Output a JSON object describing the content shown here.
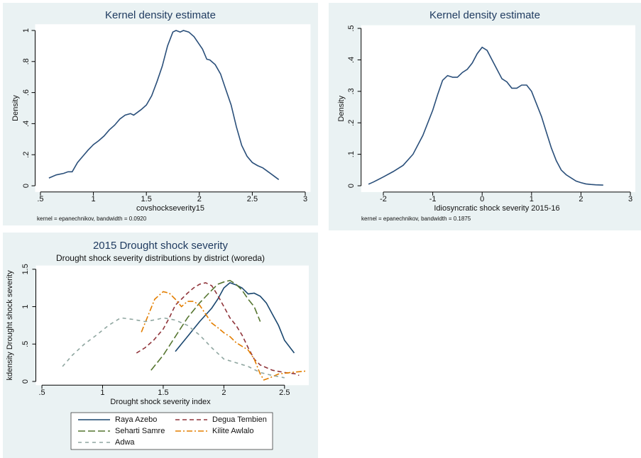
{
  "chart_data": [
    {
      "type": "line",
      "title": "Kernel density estimate",
      "y_label": "Density",
      "x_label": "covshockseverity15",
      "note": "kernel = epanechnikov, bandwidth = 0.0920",
      "color": "#2a4f7a",
      "x": [
        0.58,
        0.65,
        0.72,
        0.76,
        0.8,
        0.85,
        0.9,
        0.95,
        1.0,
        1.05,
        1.1,
        1.15,
        1.2,
        1.25,
        1.3,
        1.35,
        1.38,
        1.45,
        1.5,
        1.55,
        1.6,
        1.65,
        1.7,
        1.75,
        1.78,
        1.82,
        1.85,
        1.9,
        1.95,
        2.0,
        2.03,
        2.07,
        2.1,
        2.15,
        2.2,
        2.25,
        2.3,
        2.35,
        2.4,
        2.45,
        2.5,
        2.55,
        2.6,
        2.65,
        2.7,
        2.75
      ],
      "values": [
        0.05,
        0.07,
        0.08,
        0.09,
        0.09,
        0.15,
        0.19,
        0.23,
        0.265,
        0.29,
        0.32,
        0.36,
        0.39,
        0.43,
        0.455,
        0.465,
        0.455,
        0.49,
        0.52,
        0.58,
        0.67,
        0.77,
        0.9,
        0.99,
        1.0,
        0.99,
        1.0,
        0.99,
        0.96,
        0.91,
        0.88,
        0.815,
        0.81,
        0.78,
        0.72,
        0.62,
        0.52,
        0.38,
        0.26,
        0.19,
        0.15,
        0.13,
        0.115,
        0.09,
        0.065,
        0.04
      ],
      "xlim": [
        0.45,
        3.05
      ],
      "ylim": [
        -0.04,
        1.04
      ],
      "xticks": [
        {
          "value": 0.5,
          "label": ".5"
        },
        1,
        1.5,
        2,
        2.5,
        3
      ],
      "yticks": [
        0,
        {
          "value": 0.2,
          "label": ".2"
        },
        {
          "value": 0.4,
          "label": ".4"
        },
        {
          "value": 0.6,
          "label": ".6"
        },
        {
          "value": 0.8,
          "label": ".8"
        },
        1
      ]
    },
    {
      "type": "line",
      "title": "Kernel density estimate",
      "y_label": "Density",
      "x_label": "Idiosyncratic shock severity 2015-16",
      "note": "kernel = epanechnikov, bandwidth = 0.1875",
      "color": "#2a4f7a",
      "x": [
        -2.3,
        -2.2,
        -2.0,
        -1.8,
        -1.6,
        -1.4,
        -1.2,
        -1.0,
        -0.9,
        -0.8,
        -0.7,
        -0.6,
        -0.5,
        -0.4,
        -0.3,
        -0.2,
        -0.1,
        0.0,
        0.1,
        0.2,
        0.3,
        0.4,
        0.5,
        0.6,
        0.7,
        0.8,
        0.9,
        1.0,
        1.1,
        1.2,
        1.3,
        1.4,
        1.5,
        1.6,
        1.7,
        1.8,
        1.9,
        2.0,
        2.1,
        2.2,
        2.3,
        2.45
      ],
      "values": [
        0.005,
        0.012,
        0.028,
        0.045,
        0.065,
        0.1,
        0.16,
        0.24,
        0.29,
        0.335,
        0.35,
        0.345,
        0.345,
        0.36,
        0.37,
        0.39,
        0.42,
        0.44,
        0.43,
        0.4,
        0.37,
        0.34,
        0.33,
        0.31,
        0.31,
        0.32,
        0.32,
        0.3,
        0.26,
        0.22,
        0.17,
        0.12,
        0.08,
        0.05,
        0.035,
        0.025,
        0.015,
        0.01,
        0.006,
        0.004,
        0.003,
        0.002
      ],
      "xlim": [
        -2.45,
        3.1
      ],
      "ylim": [
        -0.02,
        0.51
      ],
      "xticks": [
        -2,
        -1,
        0,
        1,
        2,
        3
      ],
      "yticks": [
        0,
        {
          "value": 0.1,
          "label": ".1"
        },
        {
          "value": 0.2,
          "label": ".2"
        },
        {
          "value": 0.3,
          "label": ".3"
        },
        {
          "value": 0.4,
          "label": ".4"
        },
        {
          "value": 0.5,
          "label": ".5"
        }
      ]
    },
    {
      "type": "line",
      "title": "2015 Drought shock severity",
      "subtitle": "Drought shock severity distributions by district (woreda)",
      "y_label": "kdensity Drought shock severity",
      "x_label": "Drought shock severity index",
      "xlim": [
        0.45,
        2.7
      ],
      "ylim": [
        -0.05,
        1.55
      ],
      "xticks": [
        {
          "value": 0.5,
          "label": ".5"
        },
        1,
        1.5,
        2,
        2.5
      ],
      "yticks": [
        0,
        {
          "value": 0.5,
          "label": ".5"
        },
        1,
        1.5
      ],
      "series": [
        {
          "name": "Raya Azebo",
          "color": "#1a476f",
          "dash": "solid",
          "x": [
            1.6,
            1.7,
            1.8,
            1.9,
            1.95,
            2.0,
            2.05,
            2.1,
            2.15,
            2.2,
            2.25,
            2.3,
            2.35,
            2.4,
            2.45,
            2.5,
            2.58
          ],
          "values": [
            0.4,
            0.6,
            0.8,
            0.98,
            1.1,
            1.25,
            1.32,
            1.29,
            1.25,
            1.17,
            1.18,
            1.14,
            1.05,
            0.9,
            0.75,
            0.55,
            0.38
          ]
        },
        {
          "name": "Degua Tembien",
          "color": "#90353b",
          "dash": "dash",
          "x": [
            1.28,
            1.35,
            1.42,
            1.5,
            1.55,
            1.6,
            1.65,
            1.7,
            1.75,
            1.8,
            1.85,
            1.9,
            1.95,
            2.0,
            2.05,
            2.1,
            2.15,
            2.2,
            2.25,
            2.3,
            2.4,
            2.5,
            2.6,
            2.62
          ],
          "values": [
            0.38,
            0.45,
            0.55,
            0.7,
            0.85,
            1.02,
            1.1,
            1.18,
            1.25,
            1.3,
            1.32,
            1.28,
            1.15,
            1.0,
            0.85,
            0.75,
            0.62,
            0.45,
            0.3,
            0.22,
            0.15,
            0.12,
            0.1,
            0.08
          ]
        },
        {
          "name": "Seharti Samre",
          "color": "#55752f",
          "dash": "longdash",
          "x": [
            1.4,
            1.5,
            1.6,
            1.7,
            1.8,
            1.9,
            1.95,
            2.0,
            2.05,
            2.1,
            2.15,
            2.2,
            2.25,
            2.3
          ],
          "values": [
            0.15,
            0.35,
            0.6,
            0.85,
            1.05,
            1.22,
            1.3,
            1.33,
            1.35,
            1.3,
            1.22,
            1.1,
            1.0,
            0.8
          ]
        },
        {
          "name": "Kilite Awlalo",
          "color": "#e37e00",
          "dash": "dashdot",
          "x": [
            1.32,
            1.38,
            1.43,
            1.5,
            1.55,
            1.6,
            1.65,
            1.7,
            1.75,
            1.8,
            1.85,
            1.9,
            1.95,
            2.0,
            2.05,
            2.1,
            2.2,
            2.25,
            2.3,
            2.33,
            2.38,
            2.45,
            2.55,
            2.62,
            2.68
          ],
          "values": [
            0.66,
            0.9,
            1.1,
            1.2,
            1.18,
            1.1,
            1.0,
            1.07,
            1.07,
            1.02,
            0.9,
            0.78,
            0.72,
            0.65,
            0.6,
            0.52,
            0.42,
            0.3,
            0.1,
            0.02,
            0.05,
            0.1,
            0.12,
            0.13,
            0.14
          ]
        },
        {
          "name": "Adwa",
          "color": "#8fa6a0",
          "dash": "shortdash",
          "x": [
            0.67,
            0.75,
            0.85,
            0.95,
            1.05,
            1.15,
            1.25,
            1.35,
            1.45,
            1.5,
            1.6,
            1.7,
            1.8,
            1.9,
            2.0,
            2.1,
            2.2,
            2.3,
            2.4,
            2.5
          ],
          "values": [
            0.2,
            0.35,
            0.5,
            0.62,
            0.75,
            0.85,
            0.83,
            0.8,
            0.83,
            0.85,
            0.82,
            0.75,
            0.62,
            0.45,
            0.3,
            0.25,
            0.2,
            0.12,
            0.08,
            0.05
          ]
        }
      ]
    }
  ]
}
